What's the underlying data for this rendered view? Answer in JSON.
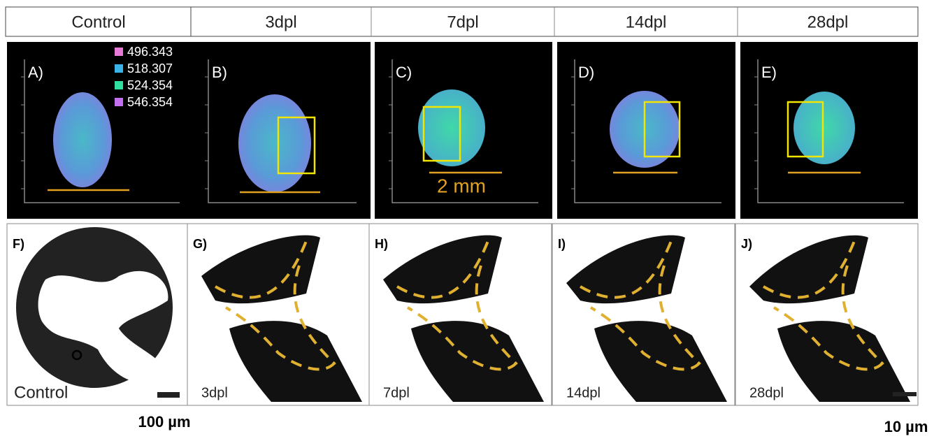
{
  "headers": [
    "Control",
    "3dpl",
    "7dpl",
    "14dpl",
    "28dpl"
  ],
  "msi_panels": [
    {
      "label": "A)"
    },
    {
      "label": "B)"
    },
    {
      "label": "C)"
    },
    {
      "label": "D)"
    },
    {
      "label": "E)"
    }
  ],
  "legend": [
    {
      "mz": "496.343",
      "color": "#e67ad6"
    },
    {
      "mz": "518.307",
      "color": "#3ab4e8"
    },
    {
      "mz": "524.354",
      "color": "#2fe0a0"
    },
    {
      "mz": "546.354",
      "color": "#c46ff0"
    }
  ],
  "scale_label": "2 mm",
  "histology_panels": [
    {
      "label": "F)",
      "caption": "Control"
    },
    {
      "label": "G)",
      "caption": "3dpl"
    },
    {
      "label": "H)",
      "caption": "7dpl"
    },
    {
      "label": "I)",
      "caption": "14dpl"
    },
    {
      "label": "J)",
      "caption": "28dpl"
    }
  ],
  "scale_bars": [
    "100 µm",
    "10 µm"
  ]
}
